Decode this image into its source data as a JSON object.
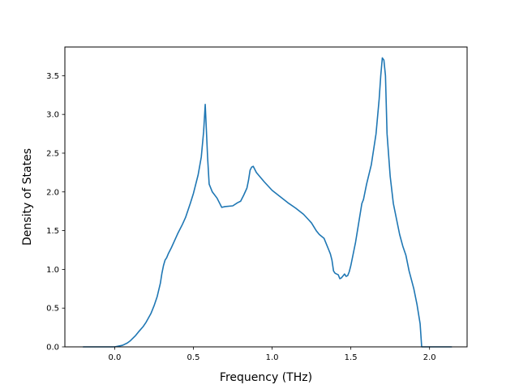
{
  "chart_data": {
    "type": "line",
    "title": "",
    "xlabel": "Frequency (THz)",
    "ylabel": "Density of States",
    "xlim": [
      -0.3165,
      2.2385
    ],
    "ylim": [
      0.0,
      3.87
    ],
    "grid": false,
    "legend": "none",
    "xticks": [
      0.0,
      0.5,
      1.0,
      1.5,
      2.0
    ],
    "xtick_labels": [
      "0.0",
      "0.5",
      "1.0",
      "1.5",
      "2.0"
    ],
    "yticks": [
      0.0,
      0.5,
      1.0,
      1.5,
      2.0,
      2.5,
      3.0,
      3.5
    ],
    "ytick_labels": [
      "0.0",
      "0.5",
      "1.0",
      "1.5",
      "2.0",
      "2.5",
      "3.0",
      "3.5"
    ],
    "series": [
      {
        "color": "#1f77b4",
        "x": [
          -0.2,
          0.0,
          0.05,
          0.08,
          0.1,
          0.13,
          0.15,
          0.18,
          0.2,
          0.23,
          0.25,
          0.27,
          0.29,
          0.3,
          0.31,
          0.32,
          0.33,
          0.34,
          0.36,
          0.38,
          0.4,
          0.43,
          0.45,
          0.48,
          0.5,
          0.53,
          0.55,
          0.565,
          0.575,
          0.59,
          0.6,
          0.62,
          0.65,
          0.68,
          0.7,
          0.75,
          0.78,
          0.8,
          0.82,
          0.84,
          0.85,
          0.86,
          0.87,
          0.88,
          0.9,
          0.95,
          1.0,
          1.05,
          1.1,
          1.15,
          1.2,
          1.25,
          1.28,
          1.3,
          1.33,
          1.35,
          1.36,
          1.37,
          1.38,
          1.39,
          1.4,
          1.42,
          1.43,
          1.44,
          1.46,
          1.47,
          1.48,
          1.49,
          1.5,
          1.52,
          1.53,
          1.55,
          1.57,
          1.58,
          1.6,
          1.63,
          1.66,
          1.68,
          1.69,
          1.7,
          1.71,
          1.72,
          1.73,
          1.75,
          1.77,
          1.79,
          1.81,
          1.83,
          1.85,
          1.87,
          1.9,
          1.92,
          1.94,
          1.95,
          2.0,
          2.14
        ],
        "y": [
          0.0,
          0.0,
          0.02,
          0.05,
          0.08,
          0.14,
          0.19,
          0.26,
          0.32,
          0.43,
          0.53,
          0.65,
          0.82,
          0.95,
          1.05,
          1.12,
          1.15,
          1.2,
          1.28,
          1.37,
          1.46,
          1.58,
          1.67,
          1.85,
          1.98,
          2.22,
          2.45,
          2.78,
          3.13,
          2.45,
          2.1,
          2.0,
          1.92,
          1.8,
          1.81,
          1.82,
          1.86,
          1.88,
          1.96,
          2.05,
          2.15,
          2.28,
          2.32,
          2.33,
          2.25,
          2.13,
          2.02,
          1.94,
          1.86,
          1.79,
          1.71,
          1.6,
          1.5,
          1.45,
          1.4,
          1.3,
          1.25,
          1.2,
          1.12,
          0.98,
          0.95,
          0.93,
          0.88,
          0.89,
          0.94,
          0.91,
          0.92,
          0.97,
          1.05,
          1.25,
          1.35,
          1.6,
          1.85,
          1.9,
          2.1,
          2.35,
          2.75,
          3.2,
          3.5,
          3.73,
          3.7,
          3.5,
          2.75,
          2.2,
          1.85,
          1.65,
          1.45,
          1.3,
          1.18,
          0.98,
          0.75,
          0.55,
          0.3,
          0.0,
          0.0,
          0.0
        ]
      }
    ]
  }
}
